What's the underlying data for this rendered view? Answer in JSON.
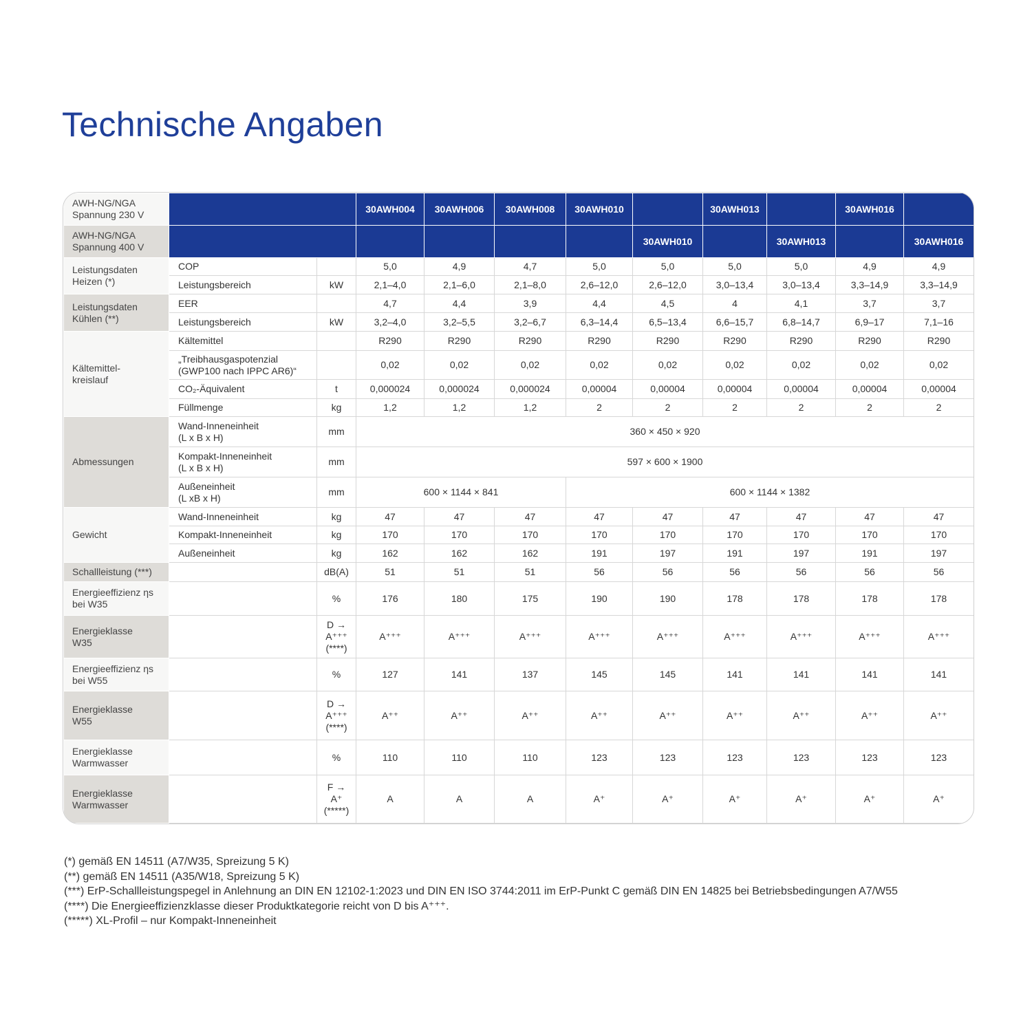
{
  "header": {
    "title": "Technische Angaben"
  },
  "table": {
    "header_rows": [
      {
        "label": "AWH-NG/NGA\nSpannung 230 V",
        "models": [
          "30AWH004",
          "30AWH006",
          "30AWH008",
          "30AWH010",
          null,
          "30AWH013",
          null,
          "30AWH016",
          null
        ]
      },
      {
        "label": "AWH-NG/NGA\nSpannung 400 V",
        "models": [
          null,
          null,
          null,
          null,
          "30AWH010",
          null,
          "30AWH013",
          null,
          "30AWH016"
        ]
      }
    ],
    "groups": [
      {
        "label": "Leistungsdaten\nHeizen (*)",
        "rows": [
          {
            "label": "COP",
            "unit": null,
            "values": [
              "5,0",
              "4,9",
              "4,7",
              "5,0",
              "5,0",
              "5,0",
              "5,0",
              "4,9",
              "4,9"
            ]
          },
          {
            "label": "Leistungsbereich",
            "unit": "kW",
            "values": [
              "2,1–4,0",
              "2,1–6,0",
              "2,1–8,0",
              "2,6–12,0",
              "2,6–12,0",
              "3,0–13,4",
              "3,0–13,4",
              "3,3–14,9",
              "3,3–14,9"
            ]
          }
        ]
      },
      {
        "label": "Leistungsdaten\nKühlen (**)",
        "rows": [
          {
            "label": "EER",
            "unit": null,
            "values": [
              "4,7",
              "4,4",
              "3,9",
              "4,4",
              "4,5",
              "4",
              "4,1",
              "3,7",
              "3,7"
            ]
          },
          {
            "label": "Leistungsbereich",
            "unit": "kW",
            "values": [
              "3,2–4,0",
              "3,2–5,5",
              "3,2–6,7",
              "6,3–14,4",
              "6,5–13,4",
              "6,6–15,7",
              "6,8–14,7",
              "6,9–17",
              "7,1–16"
            ]
          }
        ]
      },
      {
        "label": "Kältemittel-\nkreislauf",
        "rows": [
          {
            "label": "Kältemittel",
            "unit": null,
            "values": [
              "R290",
              "R290",
              "R290",
              "R290",
              "R290",
              "R290",
              "R290",
              "R290",
              "R290"
            ]
          },
          {
            "label": "„Treibhausgaspotenzial\n(GWP100 nach IPPC AR6)“",
            "unit": null,
            "values": [
              "0,02",
              "0,02",
              "0,02",
              "0,02",
              "0,02",
              "0,02",
              "0,02",
              "0,02",
              "0,02"
            ]
          },
          {
            "label": "CO₂-Äquivalent",
            "unit": "t",
            "values": [
              "0,000024",
              "0,000024",
              "0,000024",
              "0,00004",
              "0,00004",
              "0,00004",
              "0,00004",
              "0,00004",
              "0,00004"
            ]
          },
          {
            "label": "Füllmenge",
            "unit": "kg",
            "values": [
              "1,2",
              "1,2",
              "1,2",
              "2",
              "2",
              "2",
              "2",
              "2",
              "2"
            ]
          }
        ]
      },
      {
        "label": "Abmessungen",
        "rows": [
          {
            "label": "Wand-Inneneinheit\n(L x B x H)",
            "unit": "mm",
            "values": [
              "360 × 450 × 920"
            ],
            "colspan": [
              9
            ]
          },
          {
            "label": "Kompakt-Inneneinheit\n(L x B x H)",
            "unit": "mm",
            "values": [
              "597 × 600 × 1900"
            ],
            "colspan": [
              9
            ]
          },
          {
            "label": "Außeneinheit\n(L xB x H)",
            "unit": "mm",
            "values": [
              "600 × 1144 × 841",
              "600 × 1144 × 1382"
            ],
            "colspan": [
              3,
              6
            ]
          }
        ]
      },
      {
        "label": "Gewicht",
        "rows": [
          {
            "label": "Wand-Inneneinheit",
            "unit": "kg",
            "values": [
              "47",
              "47",
              "47",
              "47",
              "47",
              "47",
              "47",
              "47",
              "47"
            ]
          },
          {
            "label": "Kompakt-Inneneinheit",
            "unit": "kg",
            "values": [
              "170",
              "170",
              "170",
              "170",
              "170",
              "170",
              "170",
              "170",
              "170"
            ]
          },
          {
            "label": "Außeneinheit",
            "unit": "kg",
            "values": [
              "162",
              "162",
              "162",
              "191",
              "197",
              "191",
              "197",
              "191",
              "197"
            ]
          }
        ]
      },
      {
        "label": "Schallleistung (***)",
        "rows": [
          {
            "label": null,
            "unit": "dB(A)",
            "values": [
              "51",
              "51",
              "51",
              "56",
              "56",
              "56",
              "56",
              "56",
              "56"
            ]
          }
        ]
      },
      {
        "label": "Energieeffizienz ηs\nbei W35",
        "rows": [
          {
            "label": null,
            "unit": "%",
            "values": [
              "176",
              "180",
              "175",
              "190",
              "190",
              "178",
              "178",
              "178",
              "178"
            ]
          }
        ]
      },
      {
        "label": "Energieklasse\nW35",
        "rows": [
          {
            "label": null,
            "unit": "D →\nA⁺⁺⁺\n(****)",
            "values": [
              "A⁺⁺⁺",
              "A⁺⁺⁺",
              "A⁺⁺⁺",
              "A⁺⁺⁺",
              "A⁺⁺⁺",
              "A⁺⁺⁺",
              "A⁺⁺⁺",
              "A⁺⁺⁺",
              "A⁺⁺⁺"
            ]
          }
        ]
      },
      {
        "label": "Energieeffizienz ηs\nbei W55",
        "rows": [
          {
            "label": null,
            "unit": "%",
            "values": [
              "127",
              "141",
              "137",
              "145",
              "145",
              "141",
              "141",
              "141",
              "141"
            ]
          }
        ]
      },
      {
        "label": "Energieklasse\nW55",
        "rows": [
          {
            "label": null,
            "unit": "D →\nA⁺⁺⁺\n(****)",
            "values": [
              "A⁺⁺",
              "A⁺⁺",
              "A⁺⁺",
              "A⁺⁺",
              "A⁺⁺",
              "A⁺⁺",
              "A⁺⁺",
              "A⁺⁺",
              "A⁺⁺"
            ]
          }
        ]
      },
      {
        "label": "Energieklasse\nWarmwasser",
        "rows": [
          {
            "label": null,
            "unit": "%",
            "values": [
              "110",
              "110",
              "110",
              "123",
              "123",
              "123",
              "123",
              "123",
              "123"
            ]
          }
        ]
      },
      {
        "label": "Energieklasse\nWarmwasser",
        "rows": [
          {
            "label": null,
            "unit": "F →\nA⁺\n(*****)",
            "values": [
              "A",
              "A",
              "A",
              "A⁺",
              "A⁺",
              "A⁺",
              "A⁺",
              "A⁺",
              "A⁺"
            ]
          }
        ]
      }
    ]
  },
  "footnotes": [
    "(*) gemäß EN 14511 (A7/W35, Spreizung 5 K)",
    "(**) gemäß EN 14511 (A35/W18, Spreizung 5 K)",
    "(***) ErP-Schallleistungspegel in Anlehnung an DIN EN 12102-1:2023 und DIN EN ISO 3744:2011 im ErP-Punkt C gemäß DIN EN 14825 bei Betriebsbedingungen A7/W55",
    "(****) Die Energieeffizienzklasse dieser Produktkategorie reicht von D bis A⁺⁺⁺.",
    "(*****) XL-Profil – nur Kompakt-Inneneinheit"
  ]
}
